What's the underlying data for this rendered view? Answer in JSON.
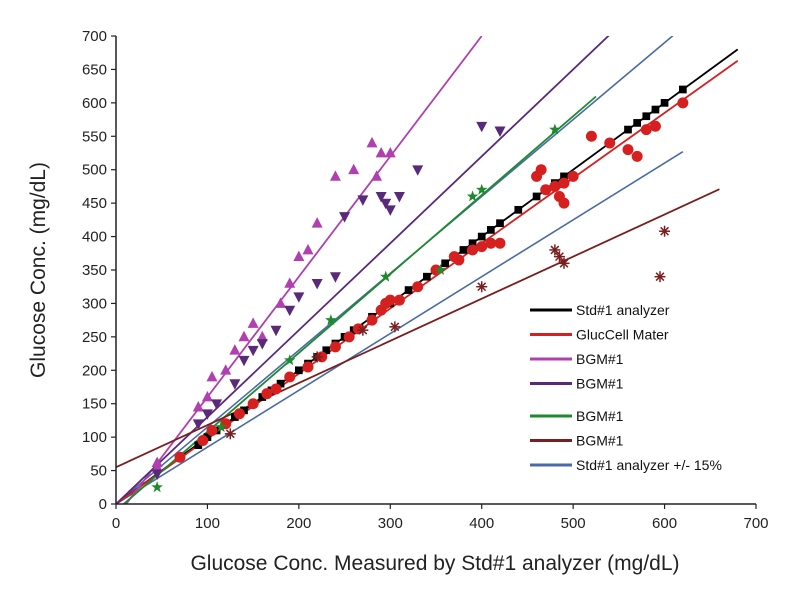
{
  "chart_data": {
    "type": "scatter",
    "xlabel": "Glucose Conc. Measured by Std#1 analyzer (mg/dL)",
    "ylabel": "Glucose Conc. (mg/dL)",
    "xlim": [
      0,
      700
    ],
    "ylim": [
      0,
      700
    ],
    "x_ticks": [
      0,
      100,
      200,
      300,
      400,
      500,
      600,
      700
    ],
    "y_ticks": [
      0,
      50,
      100,
      150,
      200,
      250,
      300,
      350,
      400,
      450,
      500,
      550,
      600,
      650,
      700
    ],
    "grid": false,
    "legend_position": "bottom-right",
    "series": [
      {
        "name": "Std#1 analyzer",
        "color": "#000000",
        "marker": "square",
        "fit": {
          "slope": 1.0,
          "intercept": 0,
          "x_range": [
            0,
            680
          ]
        },
        "points": [
          [
            90,
            88
          ],
          [
            100,
            100
          ],
          [
            110,
            110
          ],
          [
            120,
            120
          ],
          [
            130,
            130
          ],
          [
            140,
            140
          ],
          [
            150,
            150
          ],
          [
            160,
            160
          ],
          [
            170,
            170
          ],
          [
            180,
            180
          ],
          [
            190,
            190
          ],
          [
            200,
            200
          ],
          [
            210,
            210
          ],
          [
            220,
            220
          ],
          [
            230,
            230
          ],
          [
            240,
            240
          ],
          [
            250,
            250
          ],
          [
            260,
            260
          ],
          [
            280,
            280
          ],
          [
            300,
            300
          ],
          [
            320,
            320
          ],
          [
            340,
            340
          ],
          [
            360,
            360
          ],
          [
            380,
            380
          ],
          [
            390,
            390
          ],
          [
            400,
            400
          ],
          [
            410,
            410
          ],
          [
            420,
            420
          ],
          [
            440,
            440
          ],
          [
            460,
            460
          ],
          [
            470,
            470
          ],
          [
            480,
            480
          ],
          [
            490,
            490
          ],
          [
            540,
            540
          ],
          [
            560,
            560
          ],
          [
            570,
            570
          ],
          [
            580,
            580
          ],
          [
            590,
            590
          ],
          [
            600,
            600
          ],
          [
            620,
            620
          ]
        ]
      },
      {
        "name": "GlucCell Mater",
        "color": "#d62020",
        "marker": "circle",
        "fit": {
          "slope": 0.975,
          "intercept": 0,
          "x_range": [
            0,
            680
          ]
        },
        "points": [
          [
            70,
            70
          ],
          [
            95,
            95
          ],
          [
            105,
            110
          ],
          [
            120,
            120
          ],
          [
            135,
            135
          ],
          [
            150,
            150
          ],
          [
            165,
            165
          ],
          [
            175,
            172
          ],
          [
            190,
            190
          ],
          [
            210,
            205
          ],
          [
            225,
            220
          ],
          [
            240,
            235
          ],
          [
            255,
            250
          ],
          [
            265,
            262
          ],
          [
            280,
            275
          ],
          [
            290,
            290
          ],
          [
            295,
            300
          ],
          [
            300,
            305
          ],
          [
            310,
            305
          ],
          [
            330,
            325
          ],
          [
            350,
            350
          ],
          [
            370,
            370
          ],
          [
            375,
            365
          ],
          [
            390,
            380
          ],
          [
            400,
            385
          ],
          [
            410,
            390
          ],
          [
            420,
            390
          ],
          [
            460,
            490
          ],
          [
            465,
            500
          ],
          [
            470,
            470
          ],
          [
            480,
            475
          ],
          [
            490,
            480
          ],
          [
            485,
            460
          ],
          [
            490,
            450
          ],
          [
            500,
            490
          ],
          [
            520,
            550
          ],
          [
            540,
            540
          ],
          [
            560,
            530
          ],
          [
            570,
            520
          ],
          [
            580,
            560
          ],
          [
            590,
            565
          ],
          [
            620,
            600
          ]
        ]
      },
      {
        "name": "BGM#1",
        "color": "#b03fb0",
        "marker": "triangle-up",
        "fit": {
          "slope": 1.8,
          "intercept": -20,
          "x_range": [
            0,
            400
          ]
        },
        "points": [
          [
            45,
            62
          ],
          [
            45,
            55
          ],
          [
            90,
            145
          ],
          [
            100,
            160
          ],
          [
            105,
            190
          ],
          [
            120,
            200
          ],
          [
            130,
            230
          ],
          [
            140,
            250
          ],
          [
            150,
            270
          ],
          [
            160,
            250
          ],
          [
            180,
            300
          ],
          [
            190,
            330
          ],
          [
            200,
            370
          ],
          [
            210,
            380
          ],
          [
            220,
            420
          ],
          [
            240,
            490
          ],
          [
            260,
            500
          ],
          [
            280,
            540
          ],
          [
            290,
            525
          ],
          [
            300,
            525
          ],
          [
            285,
            490
          ]
        ]
      },
      {
        "name": "BGM#1",
        "color": "#5a2a7a",
        "marker": "triangle-down",
        "fit": {
          "slope": 1.3,
          "intercept": 0,
          "x_range": [
            0,
            550
          ]
        },
        "points": [
          [
            45,
            45
          ],
          [
            90,
            120
          ],
          [
            100,
            135
          ],
          [
            110,
            150
          ],
          [
            130,
            180
          ],
          [
            140,
            215
          ],
          [
            150,
            230
          ],
          [
            160,
            240
          ],
          [
            175,
            260
          ],
          [
            190,
            290
          ],
          [
            200,
            310
          ],
          [
            220,
            330
          ],
          [
            240,
            340
          ],
          [
            250,
            430
          ],
          [
            270,
            455
          ],
          [
            290,
            460
          ],
          [
            295,
            450
          ],
          [
            300,
            440
          ],
          [
            310,
            460
          ],
          [
            330,
            500
          ],
          [
            400,
            565
          ],
          [
            420,
            558
          ]
        ]
      },
      {
        "name": "BGM#1",
        "color": "#1e8a2e",
        "marker": "star",
        "fit": {
          "slope": 1.18,
          "intercept": -10,
          "x_range": [
            0,
            525
          ]
        },
        "points": [
          [
            45,
            25
          ],
          [
            115,
            115
          ],
          [
            190,
            215
          ],
          [
            235,
            275
          ],
          [
            295,
            340
          ],
          [
            355,
            350
          ],
          [
            390,
            460
          ],
          [
            400,
            470
          ],
          [
            480,
            560
          ]
        ]
      },
      {
        "name": "BGM#1",
        "color": "#7a1f1f",
        "marker": "asterisk",
        "fit": {
          "slope": 0.63,
          "intercept": 55,
          "x_range": [
            0,
            660
          ]
        },
        "points": [
          [
            125,
            105
          ],
          [
            220,
            220
          ],
          [
            270,
            260
          ],
          [
            305,
            265
          ],
          [
            400,
            325
          ],
          [
            480,
            380
          ],
          [
            485,
            370
          ],
          [
            490,
            360
          ],
          [
            595,
            340
          ],
          [
            600,
            408
          ]
        ]
      }
    ],
    "reference_lines": {
      "name": "Std#1 analyzer +/- 15%",
      "color": "#4a6aa8",
      "lines": [
        {
          "slope": 1.15,
          "intercept": 0,
          "x_range": [
            0,
            610
          ]
        },
        {
          "slope": 0.85,
          "intercept": 0,
          "x_range": [
            0,
            620
          ]
        }
      ]
    }
  }
}
